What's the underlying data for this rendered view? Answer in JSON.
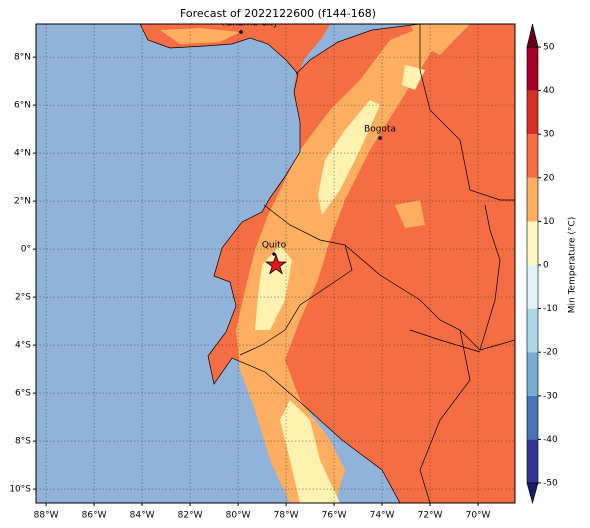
{
  "chart_data": {
    "type": "map",
    "title": "Forecast of 2022122600 (f144-168)",
    "xlim": [
      -88.42,
      -68.46
    ],
    "ylim": [
      -10.58,
      9.38
    ],
    "xticks": [
      {
        "value": -88,
        "label": "88°W"
      },
      {
        "value": -86,
        "label": "86°W"
      },
      {
        "value": -84,
        "label": "84°W"
      },
      {
        "value": -82,
        "label": "82°W"
      },
      {
        "value": -80,
        "label": "80°W"
      },
      {
        "value": -78,
        "label": "78°W"
      },
      {
        "value": -76,
        "label": "76°W"
      },
      {
        "value": -74,
        "label": "74°W"
      },
      {
        "value": -72,
        "label": "72°W"
      },
      {
        "value": -70,
        "label": "70°W"
      }
    ],
    "yticks": [
      {
        "value": 8,
        "label": "8°N"
      },
      {
        "value": 6,
        "label": "6°N"
      },
      {
        "value": 4,
        "label": "4°N"
      },
      {
        "value": 2,
        "label": "2°N"
      },
      {
        "value": 0,
        "label": "0°"
      },
      {
        "value": -2,
        "label": "2°S"
      },
      {
        "value": -4,
        "label": "4°S"
      },
      {
        "value": -6,
        "label": "6°S"
      },
      {
        "value": -8,
        "label": "8°S"
      },
      {
        "value": -10,
        "label": "10°S"
      }
    ],
    "grid": true,
    "cities": [
      "Panama City",
      "Bogota",
      "Quito"
    ],
    "colorbar": {
      "label": "Min Temperature (°C)",
      "ticks": [
        -50,
        -40,
        -30,
        -20,
        -10,
        0,
        10,
        20,
        30,
        40,
        50
      ],
      "colors": [
        "#313695",
        "#4575b4",
        "#74add1",
        "#abd9e9",
        "#e0f3f8",
        "#fff7bf",
        "#fdae61",
        "#f46d43",
        "#d73027",
        "#a50026"
      ],
      "extend_colors": [
        "#1a1a6e",
        "#67001f"
      ]
    }
  }
}
